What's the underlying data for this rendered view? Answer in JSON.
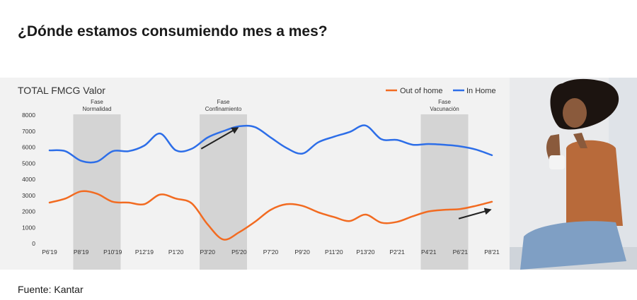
{
  "page": {
    "title": "¿Dónde estamos consumiendo mes a mes?",
    "source": "Fuente: Kantar"
  },
  "colors": {
    "out_of_home": "#f26b21",
    "in_home": "#2d6ee8",
    "phase_band": "#d4d4d4",
    "panel_bg": "#f2f2f2"
  },
  "chart_data": {
    "type": "line",
    "title": "TOTAL FMCG Valor",
    "xlabel": "",
    "ylabel": "",
    "ylim": [
      0,
      8000
    ],
    "yticks": [
      0,
      1000,
      2000,
      3000,
      4000,
      5000,
      6000,
      7000,
      8000
    ],
    "xticks": [
      "P6'19",
      "P8'19",
      "P10'19",
      "P12'19",
      "P1'20",
      "P3'20",
      "P5'20",
      "P7'20",
      "P9'20",
      "P11'20",
      "P13'20",
      "P2'21",
      "P4'21",
      "P6'21",
      "P8'21"
    ],
    "x": [
      "P6'19",
      "P7'19",
      "P8'19",
      "P9'19",
      "P10'19",
      "P11'19",
      "P12'19",
      "P13'19",
      "P1'20",
      "P2'20",
      "P3'20",
      "P4'20",
      "P5'20",
      "P6'20",
      "P7'20",
      "P8'20",
      "P9'20",
      "P10'20",
      "P11'20",
      "P12'20",
      "P13'20",
      "P1'21",
      "P2'21",
      "P3'21",
      "P4'21",
      "P5'21",
      "P6'21",
      "P7'21",
      "P8'21"
    ],
    "series": [
      {
        "name": "Out of home",
        "values": [
          2550,
          2800,
          3250,
          3100,
          2600,
          2550,
          2450,
          3050,
          2800,
          2500,
          1200,
          250,
          700,
          1350,
          2100,
          2450,
          2350,
          1950,
          1650,
          1400,
          1800,
          1300,
          1350,
          1700,
          2000,
          2100,
          2150,
          2350,
          2600
        ]
      },
      {
        "name": "In Home",
        "values": [
          5800,
          5750,
          5150,
          5100,
          5750,
          5750,
          6100,
          6850,
          5800,
          5900,
          6600,
          7000,
          7300,
          7250,
          6600,
          5950,
          5600,
          6300,
          6650,
          6950,
          7350,
          6500,
          6450,
          6150,
          6200,
          6150,
          6050,
          5850,
          5500
        ]
      }
    ],
    "phases": [
      {
        "label_line1": "Fase",
        "label_line2": "Normalidad",
        "from": 1.5,
        "to": 4.5
      },
      {
        "label_line1": "Fase",
        "label_line2": "Confinamiento",
        "from": 9.5,
        "to": 12.5
      },
      {
        "label_line1": "Fase",
        "label_line2": "Vacunación",
        "from": 23.5,
        "to": 26.5
      }
    ],
    "trend_arrows": [
      {
        "series": "In Home",
        "from": [
          9.6,
          5900
        ],
        "to": [
          11.9,
          7200
        ]
      },
      {
        "series": "Out of home",
        "from": [
          25.9,
          1550
        ],
        "to": [
          27.9,
          2100
        ]
      }
    ],
    "legend": {
      "position": "top-right",
      "entries": [
        "Out of home",
        "In Home"
      ]
    },
    "grid": false
  }
}
